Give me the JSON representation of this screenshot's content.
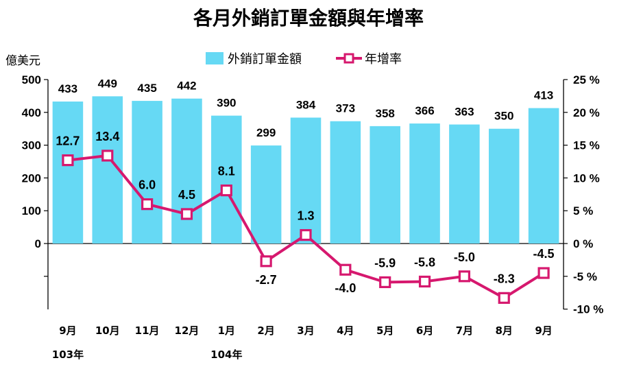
{
  "chart_data": {
    "type": "bar+line",
    "title": "各月外銷訂單金額與年增率",
    "y_left_label": "億美元",
    "y_left_ticks": [
      "500",
      "400",
      "300",
      "200",
      "100",
      "0"
    ],
    "y_left_lim": [
      -200,
      500
    ],
    "y_right_ticks": [
      "25 %",
      "20 %",
      "15 %",
      "10 %",
      "5 %",
      "0 %",
      "-5 %",
      "-10 %"
    ],
    "y_right_lim": [
      -10,
      25
    ],
    "categories": [
      "9月",
      "10月",
      "11月",
      "12月",
      "1月",
      "2月",
      "3月",
      "4月",
      "5月",
      "6月",
      "7月",
      "8月",
      "9月"
    ],
    "year_labels": [
      {
        "text": "103年",
        "category_index": 0
      },
      {
        "text": "104年",
        "category_index": 4
      }
    ],
    "series": [
      {
        "name": "外銷訂單金額",
        "type": "bar",
        "axis": "left",
        "color": "#66d9f4",
        "values": [
          433,
          449,
          435,
          442,
          390,
          299,
          384,
          373,
          358,
          366,
          363,
          350,
          413
        ]
      },
      {
        "name": "年增率",
        "type": "line",
        "axis": "right",
        "color": "#d6186e",
        "marker": "square",
        "values": [
          12.7,
          13.4,
          6.0,
          4.5,
          8.1,
          -2.7,
          1.3,
          -4.0,
          -5.9,
          -5.8,
          -5.0,
          -8.3,
          -4.5
        ],
        "labels": [
          "12.7",
          "13.4",
          "6.0",
          "4.5",
          "8.1",
          "-2.7",
          "1.3",
          "-4.0",
          "-5.9",
          "-5.8",
          "-5.0",
          "-8.3",
          "-4.5"
        ]
      }
    ],
    "legend_position": "top-center",
    "grid": false
  }
}
